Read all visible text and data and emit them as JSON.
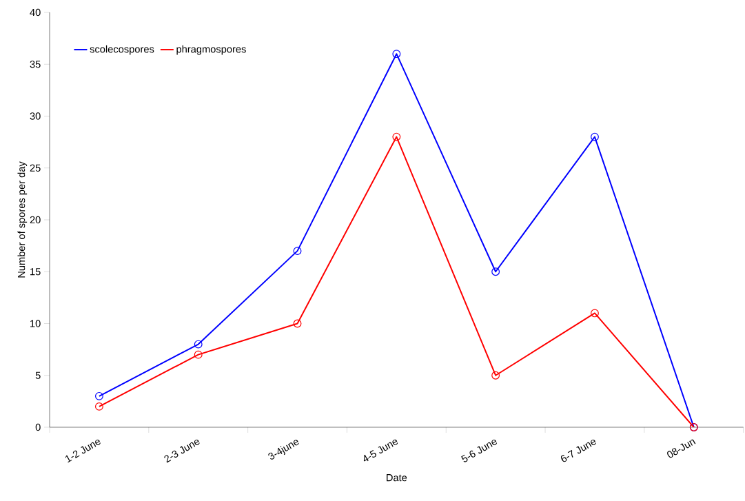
{
  "chart_data": {
    "type": "line",
    "xlabel": "Date",
    "ylabel": "Number of spores per day",
    "categories": [
      "1-2 June",
      "2-3 June",
      "3-4june",
      "4-5 June",
      "5-6 June",
      "6-7 June",
      "08-Jun"
    ],
    "series": [
      {
        "name": "scolecospores",
        "color": "#0000ff",
        "values": [
          3,
          8,
          17,
          36,
          15,
          28,
          0
        ]
      },
      {
        "name": "phragmospores",
        "color": "#ff0000",
        "values": [
          2,
          7,
          10,
          28,
          5,
          11,
          0
        ]
      }
    ],
    "ylim": [
      0,
      40
    ],
    "yticks": [
      0,
      5,
      10,
      15,
      20,
      25,
      30,
      35,
      40
    ],
    "grid": false,
    "legend": "top left",
    "marker": "circle",
    "line_style": "solid"
  }
}
